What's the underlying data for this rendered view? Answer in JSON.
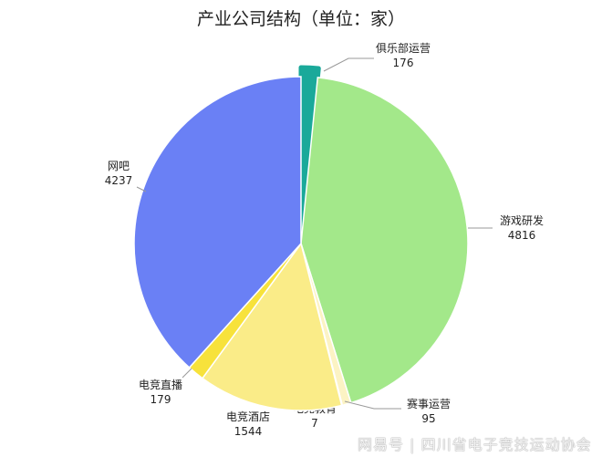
{
  "chart_data": {
    "type": "pie",
    "title": "产业公司结构（单位：家）",
    "slices": [
      {
        "label": "俱乐部运营",
        "value": 176,
        "color": "#1aa99a",
        "highlighted": true
      },
      {
        "label": "游戏研发",
        "value": 4816,
        "color": "#a3e88a"
      },
      {
        "label": "赛事运营",
        "value": 95,
        "color": "#fcf3c4"
      },
      {
        "label": "电竞教育",
        "value": 7,
        "color": "#f3e070"
      },
      {
        "label": "电竞酒店",
        "value": 1544,
        "color": "#faec88"
      },
      {
        "label": "电竞直播",
        "value": 179,
        "color": "#f7e23b"
      },
      {
        "label": "网吧",
        "value": 4237,
        "color": "#6a80f5"
      }
    ],
    "start_angle": "12 o'clock",
    "direction": "clockwise"
  },
  "watermark": "网易号 | 四川省电子竞技运动协会"
}
